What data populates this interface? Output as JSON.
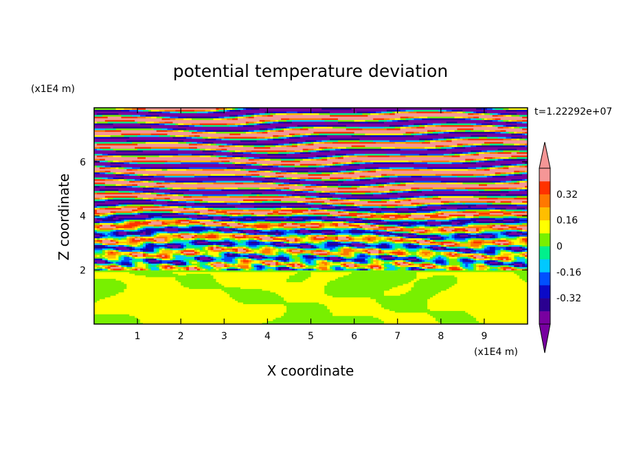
{
  "chart_data": {
    "type": "heatmap",
    "title": "potential temperature deviation",
    "xlabel": "X coordinate",
    "ylabel": "Z coordinate",
    "x_unit": "(x1E4 m)",
    "y_unit": "(x1E4 m)",
    "time_label": "t=1.22292e+07",
    "xlim": [
      0,
      10
    ],
    "ylim": [
      0,
      8
    ],
    "x_ticks": [
      "1",
      "2",
      "3",
      "4",
      "5",
      "6",
      "7",
      "8",
      "9"
    ],
    "y_ticks": [
      "2",
      "4",
      "6"
    ],
    "colorbar": {
      "levels": [
        -0.48,
        -0.4,
        -0.32,
        -0.24,
        -0.16,
        -0.08,
        0,
        0.08,
        0.16,
        0.24,
        0.32,
        0.4,
        0.48
      ],
      "colors": [
        "#7800a0",
        "#2a0090",
        "#0a0ac8",
        "#0050ff",
        "#00c8ff",
        "#00f08c",
        "#78f000",
        "#ffff00",
        "#ffbe00",
        "#ff7800",
        "#ff3200",
        "#f59696"
      ],
      "tick_labels": [
        "0.32",
        "0.16",
        "0",
        "-0.16",
        "-0.32"
      ],
      "under_color": "#7800a0",
      "over_color": "#f59696"
    },
    "description_of_field": {
      "lower_layer_z_range": [
        0,
        2
      ],
      "lower_layer_values": "near 0 (green / light-green)",
      "upper_layer_z_range": [
        2,
        8
      ],
      "upper_layer_values": "alternating horizontal bands of strongly positive (pink) and strongly negative (purple) with mixed colors between z=2 and z=5"
    }
  }
}
